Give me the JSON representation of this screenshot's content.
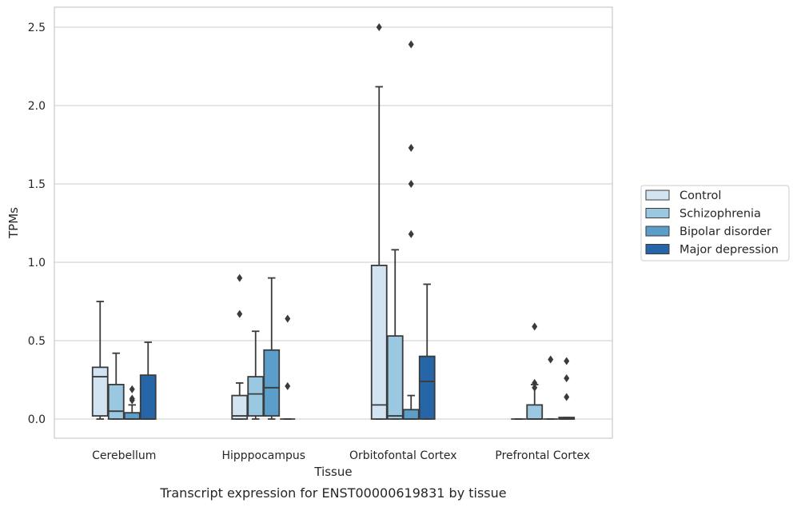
{
  "chart_data": {
    "type": "boxplot",
    "caption": "Transcript expression for ENST00000619831 by tissue",
    "xlabel": "Tissue",
    "ylabel": "TPMs",
    "ylim": [
      -0.12,
      2.63
    ],
    "yticks": [
      0.0,
      0.5,
      1.0,
      1.5,
      2.0,
      2.5
    ],
    "ytick_labels": [
      "0.0",
      "0.5",
      "1.0",
      "1.5",
      "2.0",
      "2.5"
    ],
    "grid": "horizontal",
    "legend_position": "right",
    "categories": [
      "Cerebellum",
      "Hipppocampus",
      "Orbitofontal Cortex",
      "Prefrontal Cortex"
    ],
    "series": [
      {
        "name": "Control",
        "color": "#d2e3f2",
        "boxes": [
          {
            "whislo": 0.0,
            "q1": 0.02,
            "med": 0.27,
            "q3": 0.33,
            "whishi": 0.75,
            "fliers": []
          },
          {
            "whislo": 0.0,
            "q1": 0.0,
            "med": 0.02,
            "q3": 0.15,
            "whishi": 0.23,
            "fliers": [
              0.67,
              0.9
            ]
          },
          {
            "whislo": 0.0,
            "q1": 0.0,
            "med": 0.09,
            "q3": 0.98,
            "whishi": 2.12,
            "fliers": [
              2.5
            ]
          },
          {
            "whislo": 0.0,
            "q1": 0.0,
            "med": 0.0,
            "q3": 0.0,
            "whishi": 0.0,
            "fliers": []
          }
        ]
      },
      {
        "name": "Schizophrenia",
        "color": "#9ac8e0",
        "boxes": [
          {
            "whislo": 0.0,
            "q1": 0.0,
            "med": 0.05,
            "q3": 0.22,
            "whishi": 0.42,
            "fliers": []
          },
          {
            "whislo": 0.0,
            "q1": 0.02,
            "med": 0.16,
            "q3": 0.27,
            "whishi": 0.56,
            "fliers": []
          },
          {
            "whislo": 0.0,
            "q1": 0.0,
            "med": 0.02,
            "q3": 0.53,
            "whishi": 1.08,
            "fliers": []
          },
          {
            "whislo": 0.0,
            "q1": 0.0,
            "med": 0.0,
            "q3": 0.09,
            "whishi": 0.22,
            "fliers": [
              0.2,
              0.23,
              0.59
            ]
          }
        ]
      },
      {
        "name": "Bipolar disorder",
        "color": "#5a9ec9",
        "boxes": [
          {
            "whislo": 0.0,
            "q1": 0.0,
            "med": 0.0,
            "q3": 0.04,
            "whishi": 0.09,
            "fliers": [
              0.12,
              0.13,
              0.19
            ]
          },
          {
            "whislo": 0.0,
            "q1": 0.02,
            "med": 0.2,
            "q3": 0.44,
            "whishi": 0.9,
            "fliers": []
          },
          {
            "whislo": 0.0,
            "q1": 0.0,
            "med": 0.0,
            "q3": 0.06,
            "whishi": 0.15,
            "fliers": [
              1.18,
              1.5,
              1.73,
              2.39
            ]
          },
          {
            "whislo": 0.0,
            "q1": 0.0,
            "med": 0.0,
            "q3": 0.0,
            "whishi": 0.0,
            "fliers": [
              0.38
            ]
          }
        ]
      },
      {
        "name": "Major depression",
        "color": "#2666a8",
        "boxes": [
          {
            "whislo": 0.0,
            "q1": 0.0,
            "med": 0.0,
            "q3": 0.28,
            "whishi": 0.49,
            "fliers": []
          },
          {
            "whislo": 0.0,
            "q1": 0.0,
            "med": 0.0,
            "q3": 0.0,
            "whishi": 0.0,
            "fliers": [
              0.21,
              0.64
            ]
          },
          {
            "whislo": 0.0,
            "q1": 0.0,
            "med": 0.24,
            "q3": 0.4,
            "whishi": 0.86,
            "fliers": []
          },
          {
            "whislo": 0.0,
            "q1": 0.0,
            "med": 0.0,
            "q3": 0.01,
            "whishi": 0.01,
            "fliers": [
              0.14,
              0.26,
              0.37
            ]
          }
        ]
      }
    ]
  }
}
